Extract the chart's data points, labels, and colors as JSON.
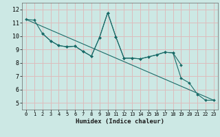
{
  "title": "",
  "xlabel": "Humidex (Indice chaleur)",
  "xlim": [
    -0.5,
    23.5
  ],
  "ylim": [
    4.5,
    12.5
  ],
  "xticks": [
    0,
    1,
    2,
    3,
    4,
    5,
    6,
    7,
    8,
    9,
    10,
    11,
    12,
    13,
    14,
    15,
    16,
    17,
    18,
    19,
    20,
    21,
    22,
    23
  ],
  "yticks": [
    5,
    6,
    7,
    8,
    9,
    10,
    11,
    12
  ],
  "background_color": "#cce8e4",
  "line_color": "#1a6b68",
  "grid_color": "#ddbcbc",
  "line1_x": [
    0,
    1,
    2,
    3,
    4,
    5,
    6,
    7,
    8,
    9,
    10,
    11,
    12,
    13,
    14,
    15,
    16,
    17,
    18,
    19
  ],
  "line1_y": [
    11.25,
    11.2,
    10.2,
    9.65,
    9.3,
    9.2,
    9.25,
    8.85,
    8.5,
    9.9,
    11.75,
    9.95,
    8.35,
    8.35,
    8.3,
    8.45,
    8.6,
    8.8,
    8.75,
    7.85
  ],
  "line2_x": [
    0,
    23
  ],
  "line2_y": [
    11.25,
    5.2
  ],
  "line3_x": [
    2,
    3,
    4,
    5,
    6,
    7,
    8,
    9,
    10,
    11,
    12,
    13,
    14,
    15,
    16,
    17,
    18,
    19,
    20,
    21,
    22,
    23
  ],
  "line3_y": [
    10.2,
    9.65,
    9.3,
    9.2,
    9.25,
    8.85,
    8.5,
    9.9,
    11.75,
    9.95,
    8.35,
    8.35,
    8.3,
    8.45,
    8.6,
    8.8,
    8.75,
    6.85,
    6.5,
    5.65,
    5.2,
    5.2
  ]
}
